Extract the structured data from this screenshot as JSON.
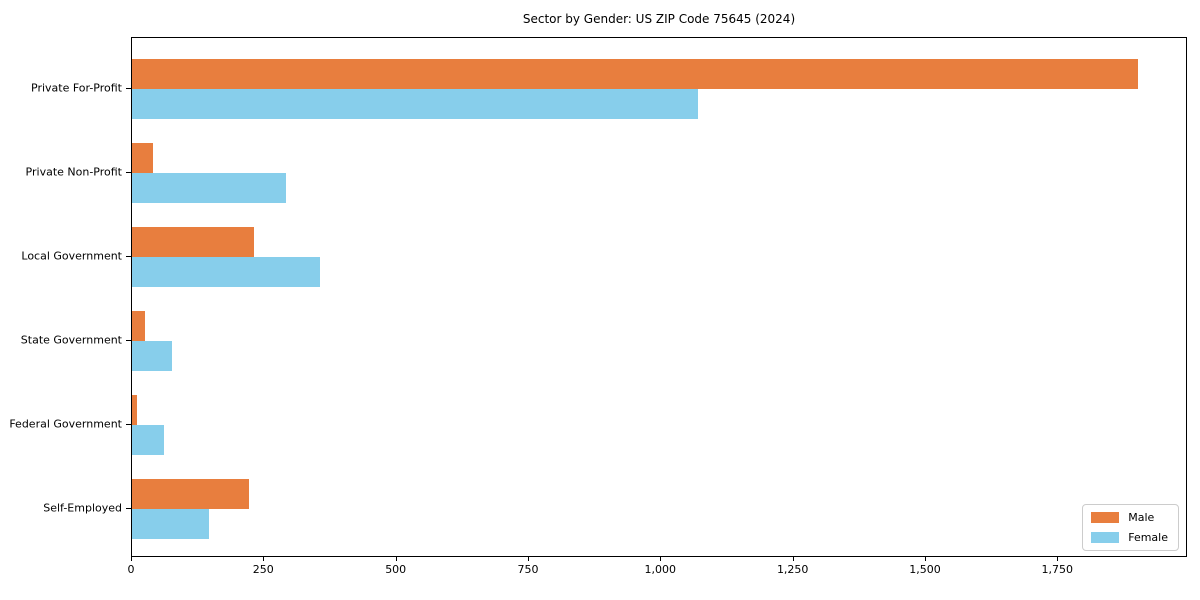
{
  "title": "Sector by Gender: US ZIP Code 75645 (2024)",
  "chart_data": {
    "type": "bar",
    "orientation": "horizontal",
    "title": "Sector by Gender: US ZIP Code 75645 (2024)",
    "categories": [
      "Private For-Profit",
      "Private Non-Profit",
      "Local Government",
      "State Government",
      "Federal Government",
      "Self-Employed"
    ],
    "series": [
      {
        "name": "Male",
        "color": "#e87e3e",
        "values": [
          1900,
          40,
          230,
          25,
          10,
          220
        ]
      },
      {
        "name": "Female",
        "color": "#87ceeb",
        "values": [
          1070,
          290,
          355,
          75,
          60,
          145
        ]
      }
    ],
    "xlim": [
      0,
      1995
    ],
    "x_ticks": [
      0,
      250,
      500,
      750,
      1000,
      1250,
      1500,
      1750
    ],
    "x_tick_labels": [
      "0",
      "250",
      "500",
      "750",
      "1,000",
      "1,250",
      "1,500",
      "1,750"
    ],
    "xlabel": "",
    "ylabel": "",
    "grid": false,
    "legend_position": "lower right",
    "legend_labels": [
      "Male",
      "Female"
    ]
  }
}
